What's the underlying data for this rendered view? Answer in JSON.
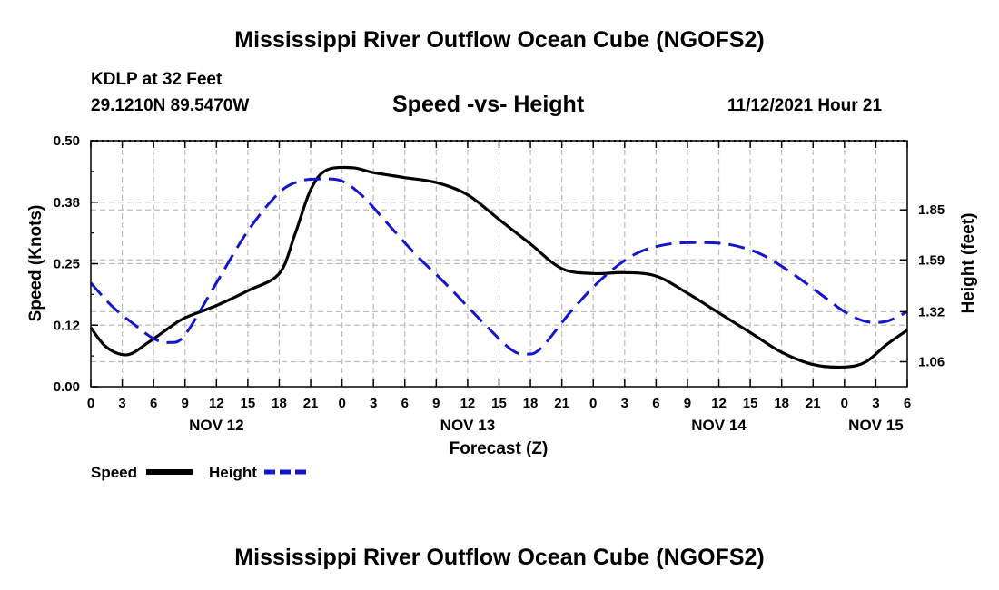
{
  "header": {
    "title": "Mississippi River Outflow Ocean Cube (NGOFS2)",
    "station": "KDLP at 32 Feet",
    "coords": "29.1210N  89.5470W",
    "chart_title": "Speed -vs- Height",
    "datetime": "11/12/2021 Hour 21"
  },
  "footer": {
    "title": "Mississippi River Outflow Ocean Cube (NGOFS2)"
  },
  "legend": {
    "speed_label": "Speed",
    "height_label": "Height"
  },
  "colors": {
    "speed": "#000000",
    "height": "#1515cc",
    "grid": "#bdbdbd"
  },
  "chart_data": {
    "type": "line",
    "title": "Speed -vs- Height",
    "xlabel": "Forecast (Z)",
    "ylabel": "Speed (Knots)",
    "y2label": "Height (feet)",
    "x_ticks": [
      "0",
      "3",
      "6",
      "9",
      "12",
      "15",
      "18",
      "21",
      "0",
      "3",
      "6",
      "9",
      "12",
      "15",
      "18",
      "21",
      "0",
      "3",
      "6",
      "9",
      "12",
      "15",
      "18",
      "21",
      "0",
      "3",
      "6"
    ],
    "day_labels": [
      {
        "label": "NOV 12",
        "hour": 12
      },
      {
        "label": "NOV 13",
        "hour": 36
      },
      {
        "label": "NOV 14",
        "hour": 60
      },
      {
        "label": "NOV 15",
        "hour": 75
      }
    ],
    "xlim": [
      0,
      78
    ],
    "ylim": [
      0,
      0.5
    ],
    "y_ticks": [
      "0.00",
      "0.12",
      "0.25",
      "0.38",
      "0.50"
    ],
    "y2lim": [
      0.93,
      2.21
    ],
    "y2_ticks": [
      "1.06",
      "1.32",
      "1.59",
      "1.85"
    ],
    "series": [
      {
        "name": "Speed",
        "axis": "left",
        "style": "solid",
        "x": [
          0,
          1.5,
          3.5,
          5.5,
          7.5,
          9,
          12,
          15,
          18,
          19.5,
          21,
          22.5,
          25,
          27,
          30,
          33,
          36,
          39,
          42,
          45,
          48,
          51,
          54,
          57,
          60,
          63,
          66,
          69,
          72,
          74,
          76,
          78
        ],
        "values": [
          0.12,
          0.08,
          0.065,
          0.09,
          0.12,
          0.14,
          0.165,
          0.195,
          0.23,
          0.31,
          0.4,
          0.44,
          0.445,
          0.435,
          0.425,
          0.415,
          0.39,
          0.34,
          0.29,
          0.24,
          0.23,
          0.232,
          0.225,
          0.19,
          0.15,
          0.11,
          0.07,
          0.045,
          0.04,
          0.05,
          0.085,
          0.115
        ]
      },
      {
        "name": "Height",
        "axis": "right",
        "style": "dashed",
        "x": [
          0,
          2,
          4,
          6,
          7.5,
          9,
          12,
          15,
          18,
          20,
          22,
          24,
          26,
          28,
          31,
          34,
          37,
          40,
          41.5,
          43,
          46,
          49,
          52,
          55,
          58,
          61,
          64,
          67,
          70,
          72,
          74,
          76,
          78
        ],
        "values": [
          1.47,
          1.35,
          1.26,
          1.18,
          1.16,
          1.2,
          1.47,
          1.74,
          1.94,
          2.0,
          2.01,
          2.0,
          1.92,
          1.8,
          1.62,
          1.46,
          1.29,
          1.13,
          1.1,
          1.13,
          1.33,
          1.5,
          1.62,
          1.67,
          1.68,
          1.67,
          1.62,
          1.52,
          1.4,
          1.32,
          1.27,
          1.27,
          1.32
        ]
      }
    ]
  }
}
